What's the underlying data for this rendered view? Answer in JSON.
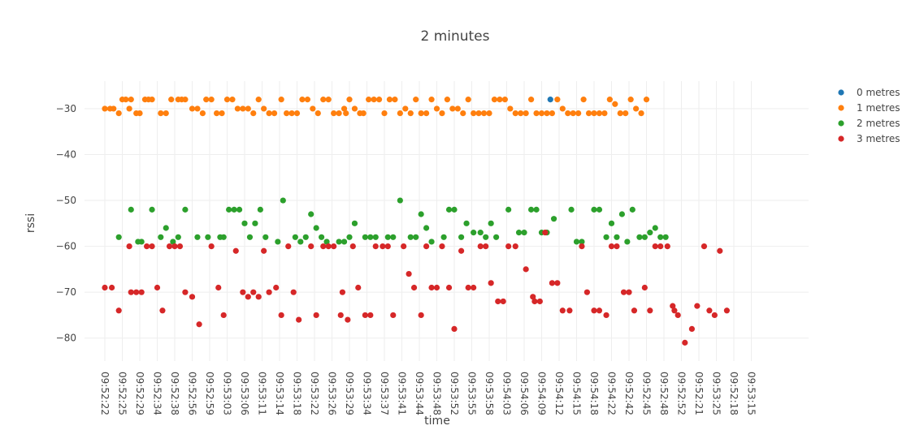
{
  "chart_data": {
    "type": "scatter",
    "title": "2 minutes",
    "xlabel": "time",
    "ylabel": "rssi",
    "ylim": [
      -85,
      -24
    ],
    "yticks": [
      -30,
      -40,
      -50,
      -60,
      -70,
      -80
    ],
    "grid": true,
    "legend_position": "top-right",
    "x_categories": [
      "09:52:22",
      "09:52:25",
      "09:52:29",
      "09:52:34",
      "09:52:38",
      "09:52:56",
      "09:52:59",
      "09:53:03",
      "09:53:06",
      "09:53:11",
      "09:53:14",
      "09:53:18",
      "09:53:22",
      "09:53:26",
      "09:53:29",
      "09:53:34",
      "09:53:37",
      "09:53:41",
      "09:53:44",
      "09:53:48",
      "09:53:52",
      "09:53:55",
      "09:53:58",
      "09:54:03",
      "09:54:06",
      "09:54:09",
      "09:54:12",
      "09:54:15",
      "09:54:18",
      "09:54:22",
      "09:52:42",
      "09:52:45",
      "09:52:48",
      "09:52:52",
      "09:52:21",
      "09:53:25",
      "09:52:18",
      "09:53:15"
    ],
    "series": [
      {
        "name": "0 metres",
        "color": "#1f77b4",
        "points": [
          [
            25.5,
            -28
          ]
        ]
      },
      {
        "name": "1 metres",
        "color": "#ff7f0e",
        "points": [
          [
            0,
            -30
          ],
          [
            0.3,
            -30
          ],
          [
            0.5,
            -30
          ],
          [
            0.8,
            -31
          ],
          [
            1,
            -28
          ],
          [
            1.2,
            -28
          ],
          [
            1.4,
            -30
          ],
          [
            1.5,
            -28
          ],
          [
            1.8,
            -31
          ],
          [
            2,
            -31
          ],
          [
            2.3,
            -28
          ],
          [
            2.5,
            -28
          ],
          [
            2.7,
            -28
          ],
          [
            3.2,
            -31
          ],
          [
            3.5,
            -31
          ],
          [
            3.8,
            -28
          ],
          [
            4.2,
            -28
          ],
          [
            4.4,
            -28
          ],
          [
            4.6,
            -28
          ],
          [
            5,
            -30
          ],
          [
            5.3,
            -30
          ],
          [
            5.6,
            -31
          ],
          [
            5.8,
            -28
          ],
          [
            6.1,
            -28
          ],
          [
            6.4,
            -31
          ],
          [
            6.7,
            -31
          ],
          [
            7,
            -28
          ],
          [
            7.3,
            -28
          ],
          [
            7.6,
            -30
          ],
          [
            7.9,
            -30
          ],
          [
            8.2,
            -30
          ],
          [
            8.5,
            -31
          ],
          [
            8.8,
            -28
          ],
          [
            9.1,
            -30
          ],
          [
            9.4,
            -31
          ],
          [
            9.7,
            -31
          ],
          [
            10.1,
            -28
          ],
          [
            10.4,
            -31
          ],
          [
            10.7,
            -31
          ],
          [
            11,
            -31
          ],
          [
            11.3,
            -28
          ],
          [
            11.6,
            -28
          ],
          [
            11.9,
            -30
          ],
          [
            12.2,
            -31
          ],
          [
            12.5,
            -28
          ],
          [
            12.8,
            -28
          ],
          [
            13.1,
            -31
          ],
          [
            13.4,
            -31
          ],
          [
            13.7,
            -30
          ],
          [
            13.8,
            -31
          ],
          [
            14,
            -28
          ],
          [
            14.3,
            -30
          ],
          [
            14.6,
            -31
          ],
          [
            14.8,
            -31
          ],
          [
            15.1,
            -28
          ],
          [
            15.4,
            -28
          ],
          [
            15.7,
            -28
          ],
          [
            16,
            -31
          ],
          [
            16.3,
            -28
          ],
          [
            16.6,
            -28
          ],
          [
            16.9,
            -31
          ],
          [
            17.2,
            -30
          ],
          [
            17.5,
            -31
          ],
          [
            17.8,
            -28
          ],
          [
            18.1,
            -31
          ],
          [
            18.4,
            -31
          ],
          [
            18.7,
            -28
          ],
          [
            19,
            -30
          ],
          [
            19.3,
            -31
          ],
          [
            19.6,
            -28
          ],
          [
            19.9,
            -30
          ],
          [
            20.2,
            -30
          ],
          [
            20.5,
            -31
          ],
          [
            20.8,
            -28
          ],
          [
            21.1,
            -31
          ],
          [
            21.4,
            -31
          ],
          [
            21.7,
            -31
          ],
          [
            22,
            -31
          ],
          [
            22.3,
            -28
          ],
          [
            22.6,
            -28
          ],
          [
            22.9,
            -28
          ],
          [
            23.2,
            -30
          ],
          [
            23.5,
            -31
          ],
          [
            23.8,
            -31
          ],
          [
            24.1,
            -31
          ],
          [
            24.4,
            -28
          ],
          [
            24.7,
            -31
          ],
          [
            25,
            -31
          ],
          [
            25.3,
            -31
          ],
          [
            25.6,
            -31
          ],
          [
            25.9,
            -28
          ],
          [
            26.2,
            -30
          ],
          [
            26.5,
            -31
          ],
          [
            26.8,
            -31
          ],
          [
            27.1,
            -31
          ],
          [
            27.4,
            -28
          ],
          [
            27.7,
            -31
          ],
          [
            28,
            -31
          ],
          [
            28.3,
            -31
          ],
          [
            28.6,
            -31
          ],
          [
            28.9,
            -28
          ],
          [
            29.2,
            -29
          ],
          [
            29.5,
            -31
          ],
          [
            29.8,
            -31
          ],
          [
            30.1,
            -28
          ],
          [
            30.4,
            -30
          ],
          [
            30.7,
            -31
          ],
          [
            31,
            -28
          ]
        ]
      },
      {
        "name": "2 metres",
        "color": "#2ca02c",
        "points": [
          [
            0.8,
            -58
          ],
          [
            1.5,
            -52
          ],
          [
            1.9,
            -59
          ],
          [
            2.1,
            -59
          ],
          [
            2.7,
            -52
          ],
          [
            3.2,
            -58
          ],
          [
            3.5,
            -56
          ],
          [
            3.9,
            -59
          ],
          [
            4.2,
            -58
          ],
          [
            4.6,
            -52
          ],
          [
            5.3,
            -58
          ],
          [
            5.9,
            -58
          ],
          [
            6.6,
            -58
          ],
          [
            6.8,
            -58
          ],
          [
            7.1,
            -52
          ],
          [
            7.4,
            -52
          ],
          [
            7.7,
            -52
          ],
          [
            8,
            -55
          ],
          [
            8.3,
            -58
          ],
          [
            8.6,
            -55
          ],
          [
            8.9,
            -52
          ],
          [
            9.2,
            -58
          ],
          [
            9.9,
            -59
          ],
          [
            10.2,
            -50
          ],
          [
            10.9,
            -58
          ],
          [
            11.2,
            -59
          ],
          [
            11.5,
            -58
          ],
          [
            11.8,
            -53
          ],
          [
            12.1,
            -56
          ],
          [
            12.4,
            -58
          ],
          [
            12.7,
            -59
          ],
          [
            13.4,
            -59
          ],
          [
            13.7,
            -59
          ],
          [
            14,
            -58
          ],
          [
            14.3,
            -55
          ],
          [
            14.9,
            -58
          ],
          [
            15.2,
            -58
          ],
          [
            15.5,
            -58
          ],
          [
            16.2,
            -58
          ],
          [
            16.5,
            -58
          ],
          [
            16.9,
            -50
          ],
          [
            17.5,
            -58
          ],
          [
            17.8,
            -58
          ],
          [
            18.1,
            -53
          ],
          [
            18.4,
            -56
          ],
          [
            18.7,
            -59
          ],
          [
            19.4,
            -58
          ],
          [
            19.7,
            -52
          ],
          [
            20,
            -52
          ],
          [
            20.4,
            -58
          ],
          [
            20.7,
            -55
          ],
          [
            21.1,
            -57
          ],
          [
            21.5,
            -57
          ],
          [
            21.8,
            -58
          ],
          [
            22.1,
            -55
          ],
          [
            22.4,
            -58
          ],
          [
            23.1,
            -52
          ],
          [
            23.7,
            -57
          ],
          [
            24,
            -57
          ],
          [
            24.4,
            -52
          ],
          [
            24.7,
            -52
          ],
          [
            25,
            -57
          ],
          [
            25.3,
            -57
          ],
          [
            25.7,
            -54
          ],
          [
            26.7,
            -52
          ],
          [
            27,
            -59
          ],
          [
            27.3,
            -59
          ],
          [
            28,
            -52
          ],
          [
            28.3,
            -52
          ],
          [
            28.7,
            -58
          ],
          [
            29,
            -55
          ],
          [
            29.3,
            -58
          ],
          [
            29.6,
            -53
          ],
          [
            29.9,
            -59
          ],
          [
            30.2,
            -52
          ],
          [
            30.6,
            -58
          ],
          [
            30.9,
            -58
          ],
          [
            31.2,
            -57
          ],
          [
            31.5,
            -56
          ],
          [
            31.8,
            -58
          ],
          [
            32.1,
            -58
          ]
        ]
      },
      {
        "name": "3 metres",
        "color": "#d62728",
        "points": [
          [
            0,
            -69
          ],
          [
            0.4,
            -69
          ],
          [
            0.8,
            -74
          ],
          [
            1.4,
            -60
          ],
          [
            1.5,
            -70
          ],
          [
            1.8,
            -70
          ],
          [
            2.1,
            -70
          ],
          [
            2.4,
            -60
          ],
          [
            2.7,
            -60
          ],
          [
            3,
            -69
          ],
          [
            3.3,
            -74
          ],
          [
            3.7,
            -60
          ],
          [
            4,
            -60
          ],
          [
            4.3,
            -60
          ],
          [
            4.6,
            -70
          ],
          [
            5,
            -71
          ],
          [
            5.4,
            -77
          ],
          [
            6.1,
            -60
          ],
          [
            6.5,
            -69
          ],
          [
            6.8,
            -75
          ],
          [
            7.5,
            -61
          ],
          [
            7.9,
            -70
          ],
          [
            8.2,
            -71
          ],
          [
            8.5,
            -70
          ],
          [
            8.8,
            -71
          ],
          [
            9.1,
            -61
          ],
          [
            9.4,
            -70
          ],
          [
            9.8,
            -69
          ],
          [
            10.1,
            -75
          ],
          [
            10.5,
            -60
          ],
          [
            10.8,
            -70
          ],
          [
            11.1,
            -76
          ],
          [
            11.8,
            -60
          ],
          [
            12.1,
            -75
          ],
          [
            12.5,
            -60
          ],
          [
            12.8,
            -60
          ],
          [
            13.1,
            -60
          ],
          [
            13.5,
            -75
          ],
          [
            13.6,
            -70
          ],
          [
            13.9,
            -76
          ],
          [
            14.2,
            -60
          ],
          [
            14.5,
            -69
          ],
          [
            14.9,
            -75
          ],
          [
            15.2,
            -75
          ],
          [
            15.5,
            -60
          ],
          [
            15.9,
            -60
          ],
          [
            16.2,
            -60
          ],
          [
            16.5,
            -75
          ],
          [
            17.1,
            -60
          ],
          [
            17.4,
            -66
          ],
          [
            17.7,
            -69
          ],
          [
            18.1,
            -75
          ],
          [
            18.4,
            -60
          ],
          [
            18.7,
            -69
          ],
          [
            19,
            -69
          ],
          [
            19.3,
            -60
          ],
          [
            19.7,
            -69
          ],
          [
            20,
            -78
          ],
          [
            20.4,
            -61
          ],
          [
            20.8,
            -69
          ],
          [
            21.1,
            -69
          ],
          [
            21.5,
            -60
          ],
          [
            21.8,
            -60
          ],
          [
            22.1,
            -68
          ],
          [
            22.5,
            -72
          ],
          [
            22.8,
            -72
          ],
          [
            23.1,
            -60
          ],
          [
            23.5,
            -60
          ],
          [
            24.1,
            -65
          ],
          [
            24.5,
            -71
          ],
          [
            24.6,
            -72
          ],
          [
            24.9,
            -72
          ],
          [
            25.2,
            -57
          ],
          [
            25.6,
            -68
          ],
          [
            25.9,
            -68
          ],
          [
            26.2,
            -74
          ],
          [
            26.6,
            -74
          ],
          [
            27.3,
            -60
          ],
          [
            27.6,
            -70
          ],
          [
            28,
            -74
          ],
          [
            28.3,
            -74
          ],
          [
            28.7,
            -75
          ],
          [
            29,
            -60
          ],
          [
            29.3,
            -60
          ],
          [
            29.7,
            -70
          ],
          [
            30,
            -70
          ],
          [
            30.3,
            -74
          ],
          [
            30.9,
            -69
          ],
          [
            31.2,
            -74
          ],
          [
            31.5,
            -60
          ],
          [
            31.8,
            -60
          ],
          [
            32.2,
            -60
          ],
          [
            32.5,
            -73
          ],
          [
            32.6,
            -74
          ],
          [
            32.8,
            -75
          ],
          [
            33.2,
            -81
          ],
          [
            33.6,
            -78
          ],
          [
            33.9,
            -73
          ],
          [
            34.3,
            -60
          ],
          [
            34.6,
            -74
          ],
          [
            34.9,
            -75
          ],
          [
            35.2,
            -61
          ],
          [
            35.6,
            -74
          ]
        ]
      }
    ]
  }
}
